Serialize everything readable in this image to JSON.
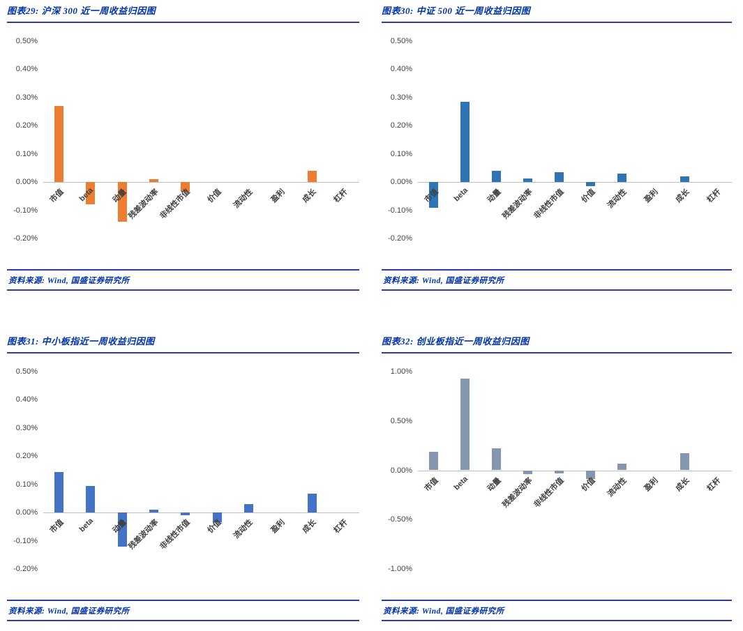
{
  "page": {
    "background": "#ffffff",
    "accent_blue": "#0033A8",
    "axis_line_color": "#bfbfbf"
  },
  "chart_data": [
    {
      "type": "bar",
      "title": "图表29: 沪深 300 近一周收益归因图",
      "source": "资料来源: Wind, 国盛证券研究所",
      "bar_color": "#ED7D31",
      "legend": "none",
      "grid": "off",
      "ylim": [
        -0.2,
        0.5
      ],
      "ticks": [
        {
          "label": "0.50%",
          "value": 0.5
        },
        {
          "label": "0.40%",
          "value": 0.4
        },
        {
          "label": "0.30%",
          "value": 0.3
        },
        {
          "label": "0.20%",
          "value": 0.2
        },
        {
          "label": "0.10%",
          "value": 0.1
        },
        {
          "label": "0.00%",
          "value": 0.0
        },
        {
          "label": "-0.10%",
          "value": -0.1
        },
        {
          "label": "-0.20%",
          "value": -0.2
        }
      ],
      "categories": [
        "市值",
        "beta",
        "动量",
        "残差波动率",
        "非线性市值",
        "价值",
        "流动性",
        "盈利",
        "成长",
        "杠杆"
      ],
      "values": [
        0.27,
        -0.08,
        -0.14,
        0.01,
        -0.035,
        0,
        0,
        0,
        0.04,
        0
      ]
    },
    {
      "type": "bar",
      "title": "图表30: 中证 500 近一周收益归因图",
      "source": "资料来源: Wind, 国盛证券研究所",
      "bar_color": "#2E75B6",
      "legend": "none",
      "grid": "off",
      "ylim": [
        -0.2,
        0.5
      ],
      "ticks": [
        {
          "label": "0.50%",
          "value": 0.5
        },
        {
          "label": "0.40%",
          "value": 0.4
        },
        {
          "label": "0.30%",
          "value": 0.3
        },
        {
          "label": "0.20%",
          "value": 0.2
        },
        {
          "label": "0.10%",
          "value": 0.1
        },
        {
          "label": "0.00%",
          "value": 0.0
        },
        {
          "label": "-0.10%",
          "value": -0.1
        },
        {
          "label": "-0.20%",
          "value": -0.2
        }
      ],
      "categories": [
        "市值",
        "beta",
        "动量",
        "残差波动率",
        "非线性市值",
        "价值",
        "流动性",
        "盈利",
        "成长",
        "杠杆"
      ],
      "values": [
        -0.09,
        0.285,
        0.04,
        0.012,
        0.035,
        -0.015,
        0.03,
        0,
        0.02,
        0
      ]
    },
    {
      "type": "bar",
      "title": "图表31: 中小板指近一周收益归因图",
      "source": "资料来源: Wind, 国盛证券研究所",
      "bar_color": "#4472C4",
      "legend": "none",
      "grid": "off",
      "ylim": [
        -0.2,
        0.5
      ],
      "ticks": [
        {
          "label": "0.50%",
          "value": 0.5
        },
        {
          "label": "0.40%",
          "value": 0.4
        },
        {
          "label": "0.30%",
          "value": 0.3
        },
        {
          "label": "0.20%",
          "value": 0.2
        },
        {
          "label": "0.10%",
          "value": 0.1
        },
        {
          "label": "0.00%",
          "value": 0.0
        },
        {
          "label": "-0.10%",
          "value": -0.1
        },
        {
          "label": "-0.20%",
          "value": -0.2
        }
      ],
      "categories": [
        "市值",
        "beta",
        "动量",
        "残差波动率",
        "非线性市值",
        "价值",
        "流动性",
        "盈利",
        "成长",
        "杠杆"
      ],
      "values": [
        0.145,
        0.095,
        -0.12,
        0.01,
        -0.01,
        -0.035,
        0.03,
        0,
        0.068,
        0
      ]
    },
    {
      "type": "bar",
      "title": "图表32: 创业板指近一周收益归因图",
      "source": "资料来源: Wind, 国盛证券研究所",
      "bar_color": "#8496B0",
      "legend": "none",
      "grid": "off",
      "ylim": [
        -1.0,
        1.0
      ],
      "ticks": [
        {
          "label": "1.00%",
          "value": 1.0
        },
        {
          "label": "0.50%",
          "value": 0.5
        },
        {
          "label": "0.00%",
          "value": 0.0
        },
        {
          "label": "-0.50%",
          "value": -0.5
        },
        {
          "label": "-1.00%",
          "value": -1.0
        }
      ],
      "categories": [
        "市值",
        "beta",
        "动量",
        "残差波动率",
        "非线性市值",
        "价值",
        "流动性",
        "盈利",
        "成长",
        "杠杆"
      ],
      "values": [
        0.19,
        0.93,
        0.22,
        -0.04,
        -0.03,
        -0.09,
        0.07,
        0,
        0.17,
        0
      ]
    }
  ]
}
